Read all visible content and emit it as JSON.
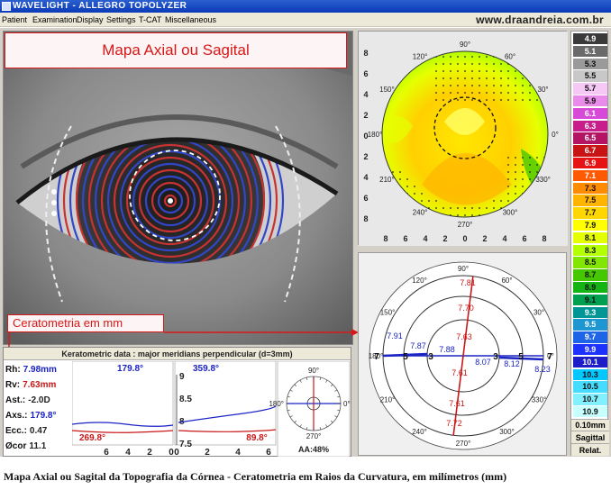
{
  "window": {
    "title": "WAVELIGHT  -  ALLEGRO TOPOLYZER",
    "website": "www.draandreia.com.br"
  },
  "menu": {
    "items": [
      "Patient",
      "Examination",
      "Display",
      "Settings",
      "T-CAT",
      "Miscellaneous"
    ]
  },
  "annotations": {
    "map_title": "Mapa Axial ou Sagital",
    "keratometry_label": "Ceratometria em mm"
  },
  "axial_map": {
    "degree_labels": [
      "90°",
      "60°",
      "30°",
      "0°",
      "330°",
      "300°",
      "270°",
      "240°",
      "210°",
      "180°",
      "150°",
      "120°"
    ],
    "left_axis": [
      "8",
      "6",
      "4",
      "2",
      "0",
      "2",
      "4",
      "6",
      "8"
    ],
    "bottom_axis": [
      "8",
      "6",
      "4",
      "2",
      "0",
      "2",
      "4",
      "6",
      "8"
    ]
  },
  "curvature_map": {
    "degree_labels": [
      "90°",
      "60°",
      "30°",
      "0°",
      "330°",
      "300°",
      "270°",
      "240°",
      "210°",
      "180°",
      "150°",
      "120°"
    ],
    "ring_labels": [
      "7",
      "5",
      "3",
      "3",
      "5",
      "7"
    ],
    "red_values": [
      "7.81",
      "7.70",
      "7.63",
      "7.61",
      "7.61",
      "7.72"
    ],
    "blue_values": [
      "7.91",
      "7.87",
      "7.88",
      "8.07",
      "8.12",
      "8.23"
    ]
  },
  "color_scale": {
    "values": [
      "4.9",
      "5.1",
      "5.3",
      "5.5",
      "5.7",
      "5.9",
      "6.1",
      "6.3",
      "6.5",
      "6.7",
      "6.9",
      "7.1",
      "7.3",
      "7.5",
      "7.7",
      "7.9",
      "8.1",
      "8.3",
      "8.5",
      "8.7",
      "8.9",
      "9.1",
      "9.3",
      "9.5",
      "9.7",
      "9.9",
      "10.1",
      "10.3",
      "10.5",
      "10.7",
      "10.9"
    ],
    "colors": [
      "#3a3a3a",
      "#6a6a6a",
      "#9a9a9a",
      "#c8c8c8",
      "#f6c8f6",
      "#e98ce9",
      "#d74ad7",
      "#c81e8c",
      "#b41464",
      "#c81414",
      "#e61414",
      "#ff5a00",
      "#ff8c00",
      "#ffb400",
      "#ffd700",
      "#ffff00",
      "#e6ff00",
      "#b4ff00",
      "#82e600",
      "#46c800",
      "#14b414",
      "#00a050",
      "#009696",
      "#1e96d2",
      "#1e64e6",
      "#1e32ff",
      "#1e1ec8",
      "#00c8ff",
      "#46dcff",
      "#82f0ff",
      "#c8ffff"
    ],
    "step": "0.10mm",
    "type": "Sagittal",
    "mode": "Relat."
  },
  "keratometric": {
    "title": "Keratometric data : major meridians perpendicular (d=3mm)",
    "params": [
      {
        "label": "Rh:",
        "value": "7.98mm",
        "color": "blue"
      },
      {
        "label": "Rv:",
        "value": "7.63mm",
        "color": "red"
      },
      {
        "label": "Ast.:",
        "value": "-2.0D",
        "color": "dark"
      },
      {
        "label": "Axs.:",
        "value": "179.8°",
        "color": "blue"
      },
      {
        "label": "Ecc.:",
        "value": "0.47",
        "color": "dark"
      },
      {
        "label": "Øcor",
        "value": "11.1",
        "color": "dark"
      }
    ],
    "chart1": {
      "axis_top": "179.8°",
      "axis_bottom": "269.8°",
      "x_ticks": [
        "6",
        "4",
        "2",
        "0"
      ]
    },
    "chart2": {
      "axis_top": "359.8°",
      "axis_bottom": "89.8°",
      "y_ticks": [
        "9",
        "8.5",
        "8",
        "7.5"
      ],
      "x_ticks": [
        "0",
        "2",
        "4",
        "6"
      ]
    },
    "compass": {
      "labels": [
        "90°",
        "0°",
        "180°",
        "270°"
      ],
      "aa": "AA:48%"
    }
  },
  "caption": "Mapa Axial ou Sagital da Topografia da Córnea - Ceratometria em Raios da Curvatura, em milímetros (mm)"
}
